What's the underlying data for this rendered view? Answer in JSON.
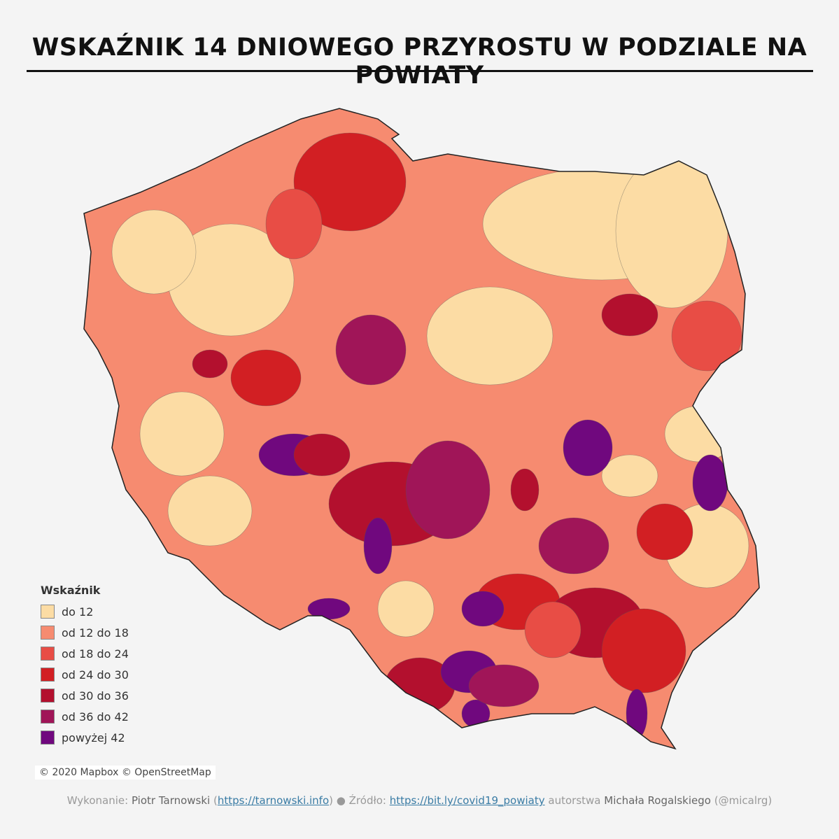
{
  "title": "WSKAŹNIK 14 DNIOWEGO PRZYROSTU W PODZIALE NA POWIATY",
  "legend": {
    "title": "Wskaźnik",
    "items": [
      {
        "label": "do 12",
        "color": "#fcdca4"
      },
      {
        "label": "od 12 do 18",
        "color": "#f68b70"
      },
      {
        "label": "od 18 do 24",
        "color": "#e84d45"
      },
      {
        "label": "od 24 do 30",
        "color": "#d21f23"
      },
      {
        "label": "od 30 do 36",
        "color": "#b3102e"
      },
      {
        "label": "od 36 do 42",
        "color": "#a01558"
      },
      {
        "label": "powyżej 42",
        "color": "#70087e"
      }
    ]
  },
  "attribution": "© 2020 Mapbox © OpenStreetMap",
  "footer": {
    "made_by_label": "Wykonanie:",
    "author": "Piotr Tarnowski",
    "author_open": "(",
    "author_link": "https://tarnowski.info",
    "author_close": ")",
    "source_label": "Źródło:",
    "source_link": "https://bit.ly/covid19_powiaty",
    "source_by": "autorstwa",
    "source_author": "Michała Rogalskiego",
    "source_handle": "(@micalrg)"
  }
}
